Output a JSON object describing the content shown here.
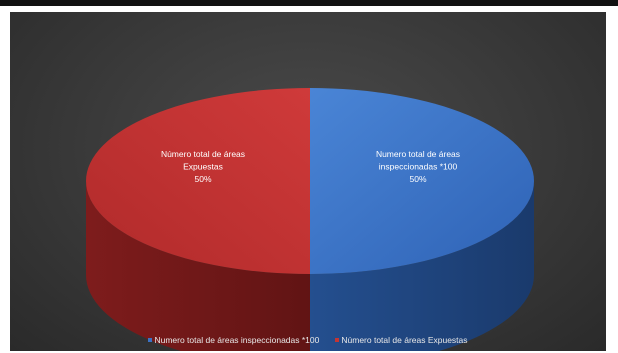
{
  "chart_data": {
    "type": "pie",
    "title": "",
    "variant": "3d",
    "categories": [
      "Numero total de áreas inspeccionadas *100",
      "Número total de áreas Expuestas"
    ],
    "values": [
      50,
      50
    ],
    "colors": [
      "#3b72c4",
      "#c33535"
    ],
    "legend_position": "bottom",
    "data_labels": [
      {
        "lines": [
          "Numero total de áreas",
          "inspeccionadas *100",
          "50%"
        ]
      },
      {
        "lines": [
          "Número total de áreas",
          "Expuestas",
          "50%"
        ]
      }
    ]
  }
}
